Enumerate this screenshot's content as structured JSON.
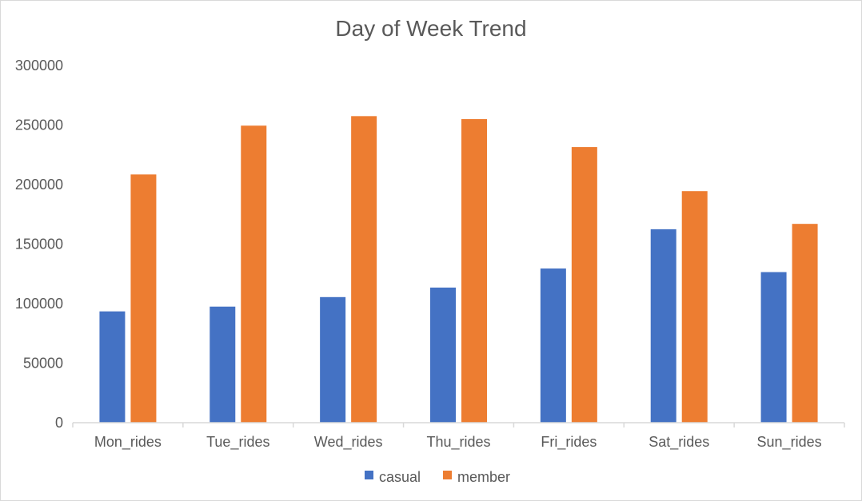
{
  "chart_data": {
    "type": "bar",
    "title": "Day of Week Trend",
    "xlabel": "",
    "ylabel": "",
    "categories": [
      "Mon_rides",
      "Tue_rides",
      "Wed_rides",
      "Thu_rides",
      "Fri_rides",
      "Sat_rides",
      "Sun_rides"
    ],
    "series": [
      {
        "name": "casual",
        "color": "#4472C4",
        "values": [
          93500,
          97500,
          105500,
          113500,
          129500,
          162500,
          126500
        ]
      },
      {
        "name": "member",
        "color": "#ED7D31",
        "values": [
          208500,
          249500,
          257500,
          255000,
          231500,
          194500,
          167000
        ]
      }
    ],
    "ylim": [
      0,
      300000
    ],
    "yticks": [
      "0",
      "50000",
      "100000",
      "150000",
      "200000",
      "250000",
      "300000"
    ],
    "grid": false,
    "legend_position": "bottom"
  }
}
